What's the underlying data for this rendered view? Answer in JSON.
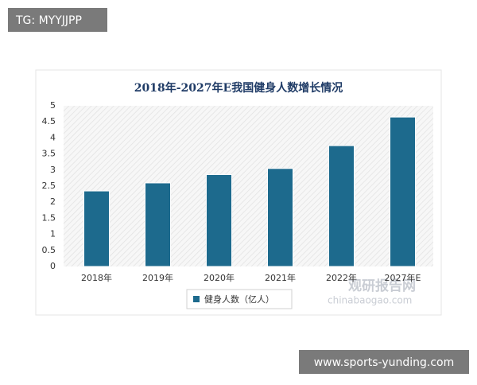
{
  "chart_data": {
    "type": "bar",
    "title": "2018年-2027年E我国健身人数增长情况",
    "categories": [
      "2018年",
      "2019年",
      "2020年",
      "2021年",
      "2022年",
      "2027年E"
    ],
    "series": [
      {
        "name": "健身人数（亿人）",
        "color": "#1d6a8d",
        "values": [
          2.35,
          2.6,
          2.86,
          3.05,
          3.76,
          4.65
        ]
      }
    ],
    "ylim": [
      0,
      5
    ],
    "yticks": [
      0,
      0.5,
      1,
      1.5,
      2,
      2.5,
      3,
      3.5,
      4,
      4.5,
      5
    ],
    "grid": false,
    "legend": "bottom"
  },
  "watermarks": [
    "TG: MYYJJPP",
    "观研报告网",
    "chinabaogao.com",
    "www.sports-yunding.com"
  ]
}
